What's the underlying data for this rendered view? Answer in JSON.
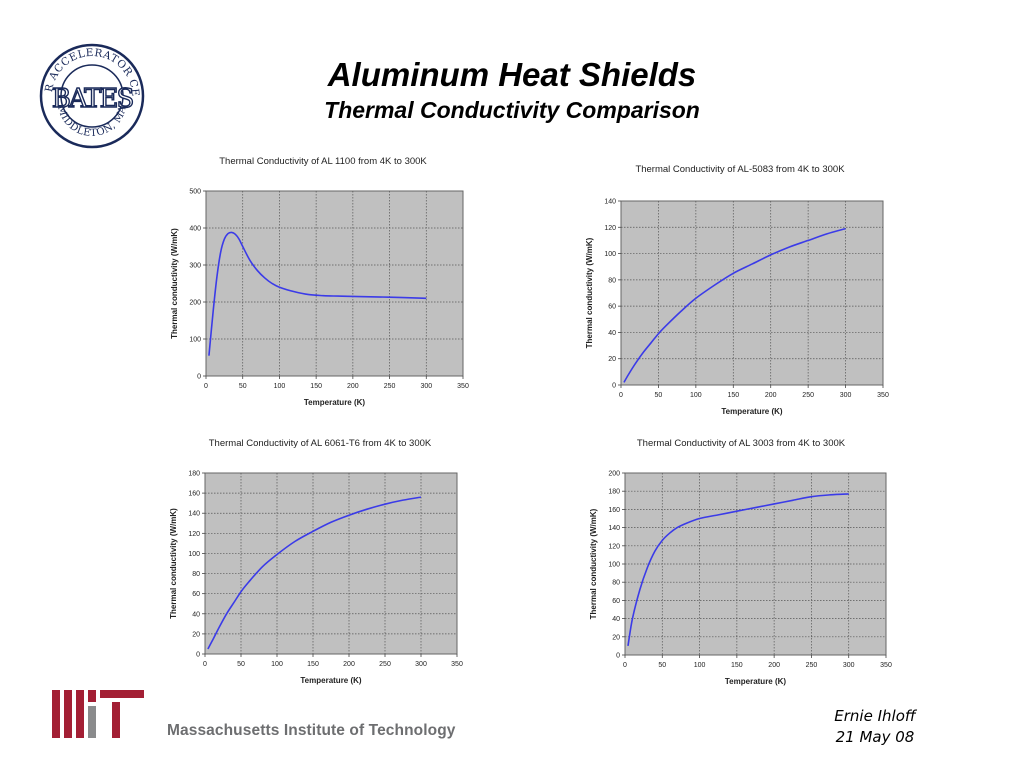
{
  "slide": {
    "title": "Aluminum Heat Shields",
    "subtitle": "Thermal Conductivity Comparison"
  },
  "logo": {
    "ring_text": "LINEAR ACCELERATOR CENTER",
    "center_text": "BATES",
    "bottom_text": "MIDDLETON, MA",
    "icon": "bates-seal-icon"
  },
  "footer": {
    "institution": "Massachusetts Institute of Technology",
    "mit_logo_icon": "mit-logo-icon",
    "mit_color": "#a31f34",
    "author": "Ernie Ihloff",
    "date": "21 May 08"
  },
  "chart_data": [
    {
      "type": "line",
      "title": "Thermal Conductivity of AL 1100 from 4K to 300K",
      "xlabel": "Temperature (K)",
      "ylabel": "Thermal conductivity (W/mK)",
      "xlim": [
        0,
        350
      ],
      "ylim": [
        0,
        500
      ],
      "xticks": [
        0,
        50,
        100,
        150,
        200,
        250,
        300,
        350
      ],
      "yticks": [
        0,
        100,
        200,
        300,
        400,
        500
      ],
      "grid": true,
      "plot_bg": "#c0c0c0",
      "line_color": "#3b3be8",
      "series": [
        {
          "x": [
            4,
            10,
            15,
            20,
            25,
            30,
            35,
            40,
            45,
            50,
            60,
            70,
            80,
            90,
            100,
            120,
            140,
            160,
            180,
            200,
            250,
            300
          ],
          "values": [
            55,
            180,
            270,
            335,
            370,
            385,
            388,
            383,
            370,
            350,
            312,
            285,
            265,
            250,
            240,
            228,
            220,
            217,
            216,
            215,
            213,
            210
          ]
        }
      ]
    },
    {
      "type": "line",
      "title": "Thermal Conductivity of AL-5083 from 4K to 300K",
      "xlabel": "Temperature (K)",
      "ylabel": "Thermal conductivity (W/mK)",
      "xlim": [
        0,
        350
      ],
      "ylim": [
        0,
        140
      ],
      "xticks": [
        0,
        50,
        100,
        150,
        200,
        250,
        300,
        350
      ],
      "yticks": [
        0,
        20,
        40,
        60,
        80,
        100,
        120,
        140
      ],
      "grid": true,
      "plot_bg": "#c0c0c0",
      "line_color": "#3b3be8",
      "series": [
        {
          "x": [
            4,
            10,
            20,
            30,
            40,
            50,
            60,
            80,
            100,
            125,
            150,
            175,
            200,
            225,
            250,
            275,
            300
          ],
          "values": [
            2,
            8,
            17,
            25,
            32,
            39,
            45,
            56,
            66,
            76,
            85,
            92,
            99,
            105,
            110,
            115,
            119
          ]
        }
      ]
    },
    {
      "type": "line",
      "title": "Thermal Conductivity of AL 6061-T6 from 4K to 300K",
      "xlabel": "Temperature (K)",
      "ylabel": "Thermal conductivity (W/mK)",
      "xlim": [
        0,
        350
      ],
      "ylim": [
        0,
        180
      ],
      "xticks": [
        0,
        50,
        100,
        150,
        200,
        250,
        300,
        350
      ],
      "yticks": [
        0,
        20,
        40,
        60,
        80,
        100,
        120,
        140,
        160,
        180
      ],
      "grid": true,
      "plot_bg": "#c0c0c0",
      "line_color": "#3b3be8",
      "series": [
        {
          "x": [
            4,
            10,
            20,
            30,
            40,
            50,
            60,
            80,
            100,
            125,
            150,
            175,
            200,
            225,
            250,
            275,
            300
          ],
          "values": [
            5,
            13,
            27,
            40,
            51,
            62,
            71,
            87,
            99,
            112,
            122,
            131,
            138,
            144,
            149,
            153,
            156
          ]
        }
      ]
    },
    {
      "type": "line",
      "title": "Thermal Conductivity of AL 3003 from 4K to 300K",
      "xlabel": "Temperature (K)",
      "ylabel": "Thermal conductivity (W/mK)",
      "xlim": [
        0,
        350
      ],
      "ylim": [
        0,
        200
      ],
      "xticks": [
        0,
        50,
        100,
        150,
        200,
        250,
        300,
        350
      ],
      "yticks": [
        0,
        20,
        40,
        60,
        80,
        100,
        120,
        140,
        160,
        180,
        200
      ],
      "grid": true,
      "plot_bg": "#c0c0c0",
      "line_color": "#3b3be8",
      "series": [
        {
          "x": [
            4,
            10,
            20,
            30,
            40,
            50,
            60,
            70,
            80,
            100,
            125,
            150,
            175,
            200,
            225,
            250,
            275,
            300
          ],
          "values": [
            10,
            40,
            72,
            96,
            114,
            126,
            134,
            140,
            144,
            150,
            154,
            158,
            162,
            166,
            170,
            174,
            176,
            177
          ]
        }
      ]
    }
  ]
}
